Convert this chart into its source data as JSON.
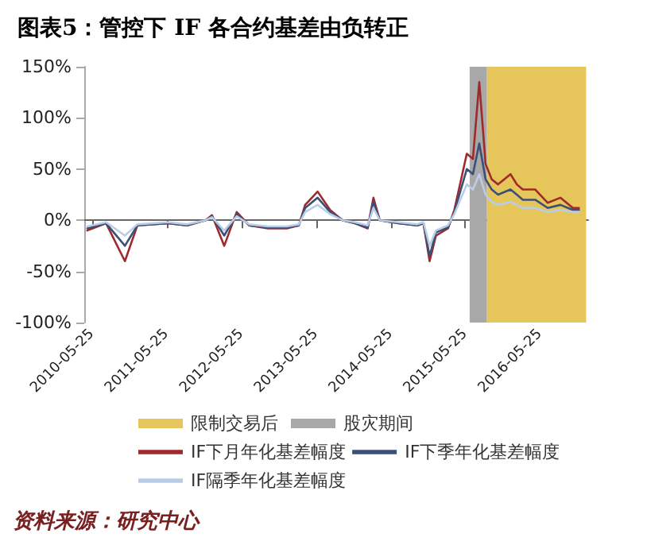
{
  "chart_data": {
    "type": "line",
    "title": "图表5：管控下 IF 各合约基差由负转正",
    "annotations": [
      "资料来源：研究中心"
    ],
    "x": [
      "2010-05",
      "2010-08",
      "2010-11",
      "2011-01",
      "2011-06",
      "2011-09",
      "2011-12",
      "2012-01",
      "2012-03",
      "2012-05",
      "2012-07",
      "2012-10",
      "2013-01",
      "2013-03",
      "2013-04",
      "2013-06",
      "2013-08",
      "2013-10",
      "2013-12",
      "2014-02",
      "2014-03",
      "2014-04",
      "2014-07",
      "2014-10",
      "2014-11",
      "2014-12",
      "2015-01",
      "2015-03",
      "2015-04",
      "2015-06",
      "2015-07",
      "2015-08",
      "2015-09",
      "2015-10",
      "2015-11",
      "2016-01",
      "2016-02",
      "2016-03",
      "2016-05",
      "2016-07",
      "2016-09",
      "2016-11",
      "2016-12"
    ],
    "series": [
      {
        "name": "IF下月年化基差幅度",
        "color": "#9e2a2b",
        "values": [
          -10,
          -3,
          -40,
          -5,
          -3,
          -5,
          0,
          5,
          -25,
          8,
          -5,
          -8,
          -8,
          -5,
          15,
          28,
          10,
          0,
          -3,
          -8,
          22,
          0,
          -3,
          -5,
          -3,
          -40,
          -15,
          -8,
          10,
          65,
          60,
          135,
          55,
          40,
          35,
          45,
          35,
          30,
          30,
          17,
          22,
          12,
          12
        ]
      },
      {
        "name": "IF下季年化基差幅度",
        "color": "#3b4f78",
        "values": [
          -8,
          -3,
          -25,
          -5,
          -3,
          -5,
          0,
          4,
          -15,
          6,
          -5,
          -7,
          -7,
          -5,
          12,
          22,
          8,
          0,
          -3,
          -7,
          18,
          0,
          -3,
          -5,
          -3,
          -35,
          -12,
          -7,
          8,
          50,
          45,
          75,
          40,
          30,
          25,
          30,
          25,
          20,
          20,
          12,
          15,
          10,
          10
        ]
      },
      {
        "name": "IF隔季年化基差幅度",
        "color": "#b9cde6",
        "values": [
          -6,
          -2,
          -15,
          -4,
          -2,
          -4,
          0,
          3,
          -10,
          4,
          -4,
          -6,
          -6,
          -4,
          8,
          15,
          6,
          0,
          -2,
          -5,
          12,
          0,
          -2,
          -4,
          -2,
          -25,
          -10,
          -5,
          6,
          35,
          30,
          45,
          25,
          18,
          15,
          18,
          15,
          12,
          12,
          8,
          10,
          8,
          8
        ]
      }
    ],
    "bands": [
      {
        "axis": "x",
        "from": "2015-09-07",
        "to": "2017-01-05",
        "label": "限制交易后",
        "color": "#e6c65a"
      },
      {
        "axis": "x",
        "from": "2015-06-15",
        "to": "2015-09-07",
        "label": "股灾期间",
        "color": "#a8a8a8"
      }
    ],
    "xlim": [
      "2010-04-16",
      "2017-01-15"
    ],
    "xticks": [
      "2010-05-25",
      "2011-05-25",
      "2012-05-25",
      "2013-05-25",
      "2014-05-25",
      "2015-05-25",
      "2016-05-25"
    ],
    "ylim": [
      -100,
      150
    ],
    "yticks": [
      {
        "value": -100,
        "label": "-100%"
      },
      {
        "value": -50,
        "label": "-50%"
      },
      {
        "value": 0,
        "label": "0%"
      },
      {
        "value": 50,
        "label": "50%"
      },
      {
        "value": 100,
        "label": "100%"
      },
      {
        "value": 150,
        "label": "150%"
      }
    ],
    "legend": "bottom",
    "line_style": "solid",
    "marker": "none"
  }
}
